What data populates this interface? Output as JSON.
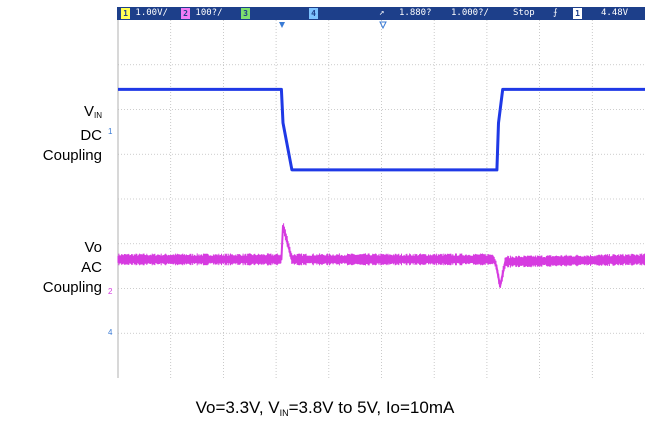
{
  "status_bar": {
    "ch1_badge": "1",
    "ch1_scale": "1.00V/",
    "ch2_badge": "2",
    "ch2_scale": "100?/",
    "ch3_badge": "3",
    "ch4_badge": "4",
    "trig_delay": "1.880?",
    "timebase": "1.000?/",
    "run_state": "Stop",
    "trig_source_badge": "1",
    "trig_level": "4.48V"
  },
  "labels": {
    "vin_v": "V",
    "vin_sub": "IN",
    "vin_line2": "DC",
    "vin_line3": "Coupling",
    "vo_line1": "Vo",
    "vo_line2": "AC",
    "vo_line3": "Coupling"
  },
  "markers": {
    "ch1_marker": "1",
    "ch2_marker": "2",
    "ch4_marker": "4"
  },
  "caption": {
    "part1": "Vo=3.3V, V",
    "sub": "IN",
    "part2": "=3.8V to 5V, Io=10mA"
  },
  "colors": {
    "status_bg": "#1d3f8a",
    "ch1": "#1f39e6",
    "ch2": "#d63be0",
    "ch3": "#49c13f",
    "ch4": "#3a7bd5",
    "grid": "#bdbdbd"
  },
  "chart_data": {
    "type": "line",
    "title": "",
    "xlabel": "",
    "ylabel": "",
    "x_divisions": 10,
    "y_divisions": 8,
    "grid": true,
    "series": [
      {
        "name": "VIN DC Coupling",
        "x": [
          0,
          3.1,
          3.13,
          3.3,
          7.19,
          7.22,
          7.3,
          10
        ],
        "y": [
          -2.45,
          -2.45,
          -1.7,
          -0.65,
          -0.65,
          -1.7,
          -2.45,
          -2.45
        ]
      },
      {
        "name": "Vo AC Coupling",
        "x": [
          0,
          3.1,
          3.13,
          3.2,
          3.3,
          7.13,
          7.18,
          7.25,
          7.35,
          10
        ],
        "y": [
          1.35,
          1.35,
          0.6,
          0.9,
          1.35,
          1.35,
          1.5,
          1.95,
          1.4,
          1.35
        ]
      }
    ]
  }
}
